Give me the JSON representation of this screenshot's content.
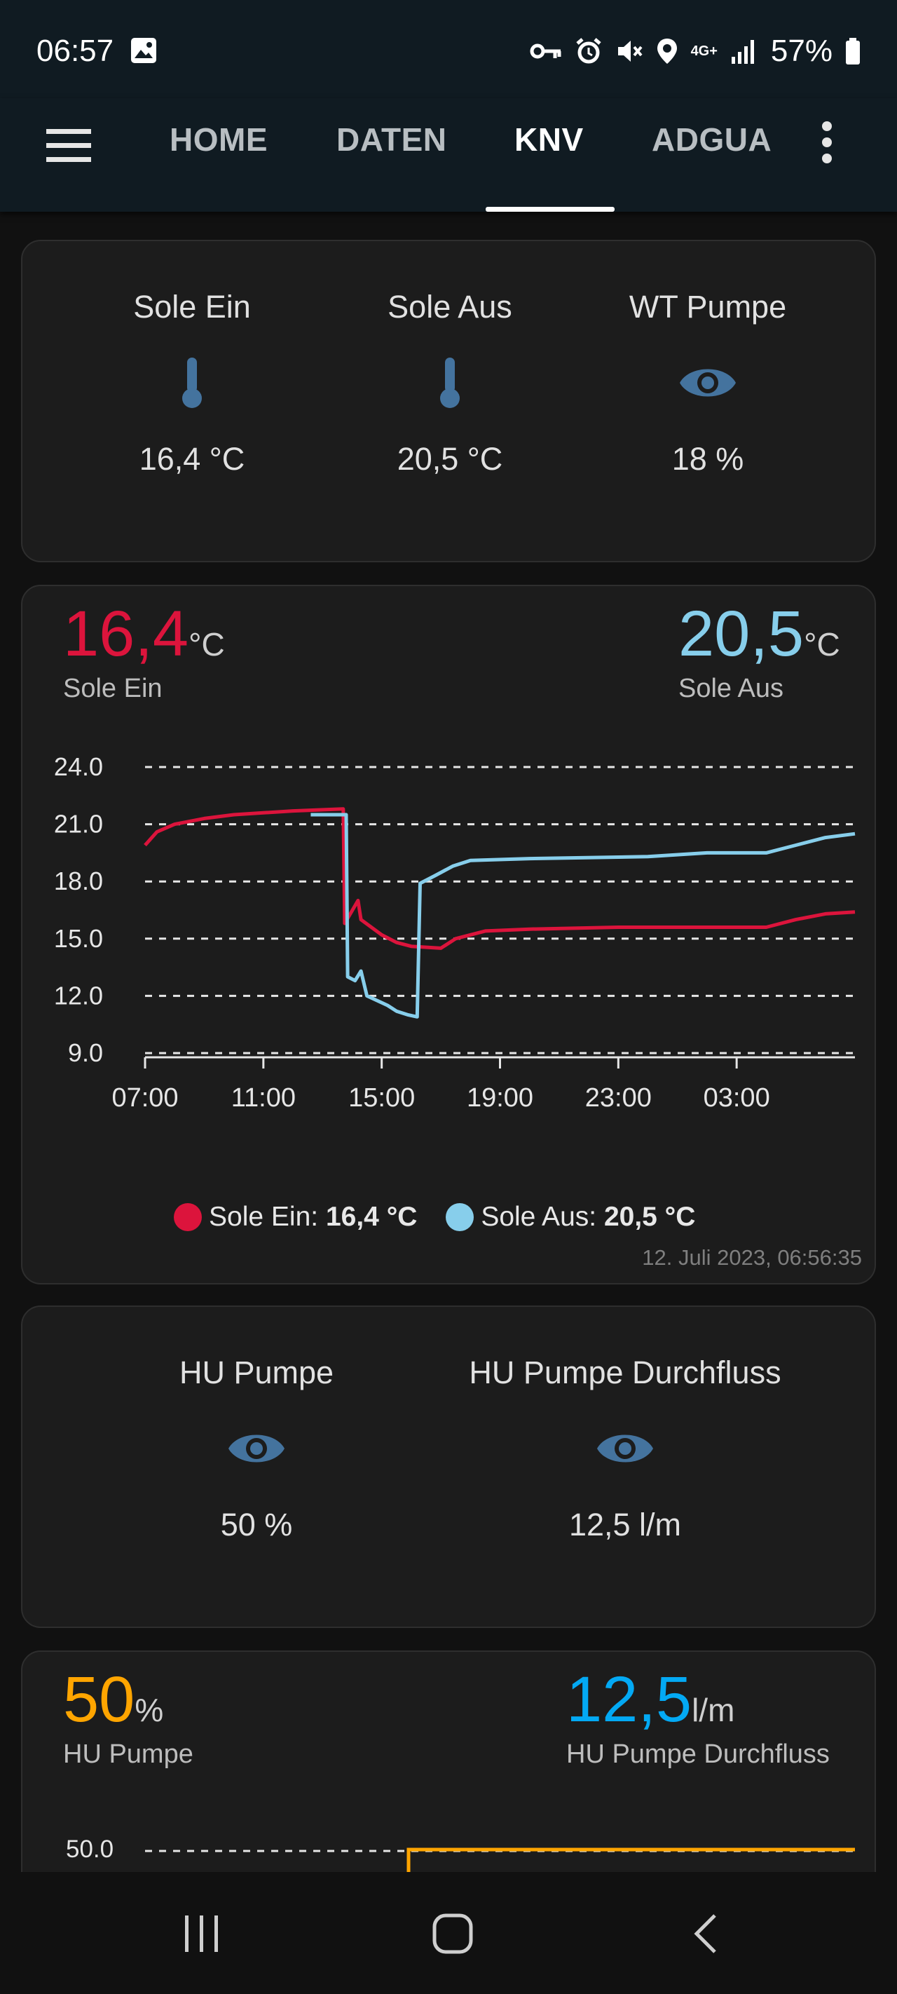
{
  "status": {
    "time": "06:57",
    "battery": "57%",
    "network": "4G+"
  },
  "tabs": [
    "HOME",
    "DATEN",
    "KNV",
    "ADGUA"
  ],
  "active_tab": "KNV",
  "entities1": [
    {
      "name": "Sole Ein",
      "value": "16,4 °C",
      "icon": "thermometer-icon"
    },
    {
      "name": "Sole Aus",
      "value": "20,5 °C",
      "icon": "thermometer-icon"
    },
    {
      "name": "WT Pumpe",
      "value": "18 %",
      "icon": "eye-icon"
    }
  ],
  "sensor_card": {
    "left": {
      "value": "16,4",
      "unit": "°C",
      "label": "Sole Ein",
      "color": "#dc143c"
    },
    "right": {
      "value": "20,5",
      "unit": "°C",
      "label": "Sole Aus",
      "color": "#87ceeb"
    },
    "legend": [
      {
        "name": "Sole Ein:",
        "value": "16,4 °C",
        "color": "#dc143c"
      },
      {
        "name": "Sole Aus:",
        "value": "20,5 °C",
        "color": "#87ceeb"
      }
    ],
    "timestamp": "12. Juli 2023, 06:56:35"
  },
  "entities2": [
    {
      "name": "HU Pumpe",
      "value": "50 %",
      "icon": "eye-icon"
    },
    {
      "name": "HU Pumpe Durchfluss",
      "value": "12,5 l/m",
      "icon": "eye-icon"
    }
  ],
  "sensor_card2": {
    "left": {
      "value": "50",
      "unit": "%",
      "label": "HU Pumpe",
      "color": "#ffa500"
    },
    "right": {
      "value": "12,5",
      "unit": "l/m",
      "label": "HU Pumpe Durchfluss",
      "color": "#03a9f4"
    },
    "y_tick": "50.0"
  },
  "chart_data": {
    "type": "line",
    "y_ticks": [
      "24.0",
      "21.0",
      "18.0",
      "15.0",
      "12.0",
      "9.0"
    ],
    "x_ticks": [
      "07:00",
      "11:00",
      "15:00",
      "19:00",
      "23:00",
      "03:00"
    ],
    "ylim": [
      9,
      24
    ],
    "grid": true,
    "series": [
      {
        "name": "Sole Ein",
        "color": "#dc143c",
        "points": [
          [
            0,
            19.9
          ],
          [
            0.4,
            20.6
          ],
          [
            1,
            21.0
          ],
          [
            2,
            21.3
          ],
          [
            3,
            21.5
          ],
          [
            4,
            21.6
          ],
          [
            5,
            21.7
          ],
          [
            6.7,
            21.8
          ],
          [
            6.75,
            15.8
          ],
          [
            7.2,
            17.0
          ],
          [
            7.3,
            16.0
          ],
          [
            8,
            15.2
          ],
          [
            8.5,
            14.8
          ],
          [
            9,
            14.6
          ],
          [
            10,
            14.5
          ],
          [
            10.5,
            15.0
          ],
          [
            11.5,
            15.4
          ],
          [
            13,
            15.5
          ],
          [
            16,
            15.6
          ],
          [
            20,
            15.6
          ],
          [
            21,
            15.6
          ],
          [
            22,
            16.0
          ],
          [
            23,
            16.3
          ],
          [
            24,
            16.4
          ]
        ]
      },
      {
        "name": "Sole Aus",
        "color": "#87ceeb",
        "points": [
          [
            5.6,
            21.5
          ],
          [
            6.8,
            21.5
          ],
          [
            6.85,
            13.0
          ],
          [
            7.1,
            12.8
          ],
          [
            7.3,
            13.3
          ],
          [
            7.5,
            12.0
          ],
          [
            8.2,
            11.5
          ],
          [
            8.5,
            11.2
          ],
          [
            8.9,
            11.0
          ],
          [
            9.2,
            10.9
          ],
          [
            9.3,
            17.9
          ],
          [
            9.8,
            18.3
          ],
          [
            10.4,
            18.8
          ],
          [
            11,
            19.1
          ],
          [
            13,
            19.2
          ],
          [
            17,
            19.3
          ],
          [
            19,
            19.5
          ],
          [
            21,
            19.5
          ],
          [
            22,
            19.9
          ],
          [
            23,
            20.3
          ],
          [
            24,
            20.5
          ]
        ]
      }
    ]
  }
}
